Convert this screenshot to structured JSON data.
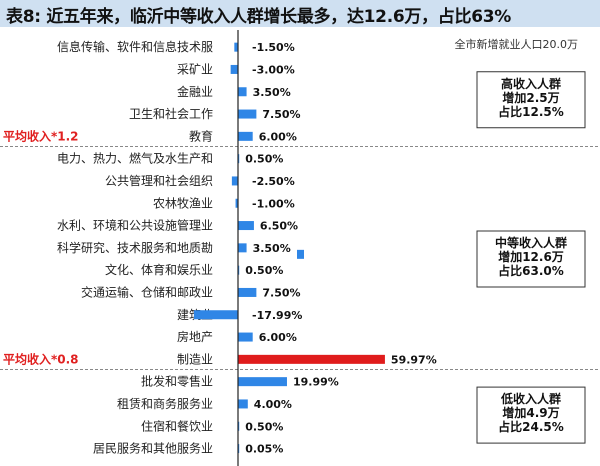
{
  "header": {
    "title": "表8: 近五年来，临沂中等收入人群增长最多，达12.6万，占比63%"
  },
  "chart_data": {
    "type": "bar",
    "orientation": "horizontal",
    "value_suffix": "%",
    "note": "全市新增就业人口20.0万",
    "categories": [
      "信息传输、软件和信息技术服",
      "采矿业",
      "金融业",
      "卫生和社会工作",
      "教育",
      "电力、热力、燃气及水生产和",
      "公共管理和社会组织",
      "农林牧渔业",
      "水利、环境和公共设施管理业",
      "科学研究、技术服务和地质勘",
      "文化、体育和娱乐业",
      "交通运输、仓储和邮政业",
      "建筑业",
      "房地产",
      "制造业",
      "批发和零售业",
      "租赁和商务服务业",
      "住宿和餐饮业",
      "居民服务和其他服务业"
    ],
    "values": [
      -1.5,
      -3.0,
      3.5,
      7.5,
      6.0,
      0.5,
      -2.5,
      -1.0,
      6.5,
      3.5,
      0.5,
      7.5,
      -17.99,
      6.0,
      59.97,
      19.99,
      4.0,
      0.5,
      0.05
    ],
    "value_labels": [
      "-1.50%",
      "-3.00%",
      "3.50%",
      "7.50%",
      "6.00%",
      "0.50%",
      "-2.50%",
      "-1.00%",
      "6.50%",
      "3.50%",
      "0.50%",
      "7.50%",
      "-17.99%",
      "6.00%",
      "59.97%",
      "19.99%",
      "4.00%",
      "0.50%",
      "0.05%"
    ],
    "highlight_index": 14,
    "colors": {
      "bar": "#2f86e6",
      "highlight": "#e01c1c",
      "divider": "#888888"
    },
    "markers": [
      {
        "label": "平均收入*1.2",
        "row": 4
      },
      {
        "label": "平均收入*0.8",
        "row": 14
      }
    ],
    "groups": [
      {
        "rows": [
          0,
          4
        ],
        "lines": [
          "高收入人群",
          "增加2.5万",
          "占比12.5%"
        ]
      },
      {
        "rows": [
          5,
          14
        ],
        "lines": [
          "中等收入人群",
          "增加12.6万",
          "占比63.0%"
        ]
      },
      {
        "rows": [
          15,
          18
        ],
        "lines": [
          "低收入人群",
          "增加4.9万",
          "占比24.5%"
        ]
      }
    ]
  }
}
